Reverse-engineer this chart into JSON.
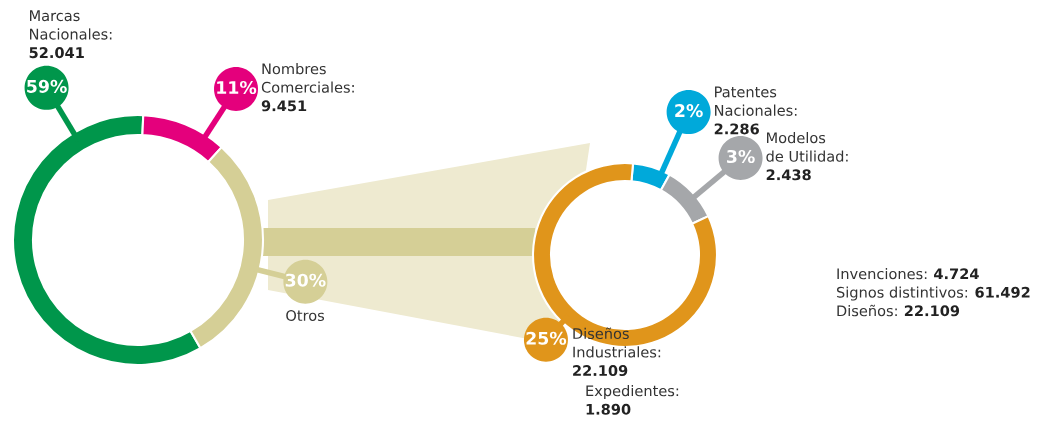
{
  "chart_data": [
    {
      "type": "donut",
      "categories": [
        "Marcas\nNacionales:\n52.041",
        "Nombres\nComerciales:\n9.451",
        "Otros"
      ],
      "values": [
        59,
        11,
        30
      ],
      "colors": [
        "#00964b",
        "#e4007c",
        "#d5cf96"
      ],
      "value_labels": [
        "59%",
        "11%",
        "30%"
      ]
    },
    {
      "type": "donut",
      "categories": [
        "Patentes\nNacionales:\n2.286",
        "Modelos\nde Utilidad:\n2.438",
        "Diseños\nIndustriales:\n22.109"
      ],
      "values": [
        2,
        3,
        25
      ],
      "colors": [
        "#00a9da",
        "#a5a7aa",
        "#e0951b"
      ],
      "value_labels": [
        "2%",
        "3%",
        "25%"
      ],
      "annotations": [
        "Expedientes:\n1.890",
        "Invenciones: 4.724\nSignos distintivos: 61.492\nDiseños: 22.109"
      ]
    }
  ]
}
